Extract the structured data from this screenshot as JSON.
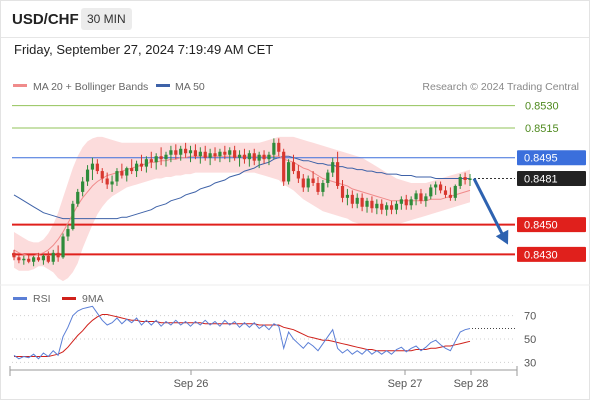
{
  "header": {
    "pair": "USD/CHF",
    "timeframe": "30 MIN",
    "datetime": "Friday, September 27, 2024 7:19:49 AM CET"
  },
  "colors": {
    "resistance": "#92c35a",
    "pivot": "#3b6fdc",
    "support": "#e0201c",
    "bullish": "#2e8b3a",
    "bearish": "#d8372f",
    "bollinger_fill": "#fcdcdc",
    "ma20": "#f08b8b",
    "ma50": "#3e62a8",
    "rsi": "#5b7fd6",
    "rsi_ma": "#d0211b",
    "arrow": "#2e62b0"
  },
  "chart_data": [
    {
      "type": "candlestick",
      "title": "USD/CHF",
      "legend": [
        {
          "name": "MA 20 + Bollinger Bands",
          "color": "#f08b8b"
        },
        {
          "name": "MA 50",
          "color": "#3e62a8"
        }
      ],
      "legend_position": "top-left",
      "credit": "Research © 2024 Trading Central",
      "x_ticks": [
        "Sep 26",
        "Sep 27",
        "Sep 28"
      ],
      "ylim": [
        0.8406,
        0.8554
      ],
      "levels": [
        {
          "label": "0.8530",
          "value": 0.853,
          "kind": "resistance"
        },
        {
          "label": "0.8515",
          "value": 0.8515,
          "kind": "resistance"
        },
        {
          "label": "0.8495",
          "value": 0.8495,
          "kind": "pivot"
        },
        {
          "label": "0.8481",
          "value": 0.8481,
          "kind": "current"
        },
        {
          "label": "0.8450",
          "value": 0.845,
          "kind": "support"
        },
        {
          "label": "0.8430",
          "value": 0.843,
          "kind": "support"
        }
      ],
      "candles": [
        [
          0.8431,
          0.8433,
          0.8426,
          0.8428
        ],
        [
          0.8428,
          0.843,
          0.8424,
          0.8426
        ],
        [
          0.8426,
          0.8429,
          0.8423,
          0.8427
        ],
        [
          0.8427,
          0.843,
          0.8424,
          0.8425
        ],
        [
          0.8425,
          0.8429,
          0.8422,
          0.8428
        ],
        [
          0.8428,
          0.8431,
          0.8425,
          0.8426
        ],
        [
          0.8426,
          0.843,
          0.8423,
          0.8429
        ],
        [
          0.8429,
          0.8432,
          0.8424,
          0.8425
        ],
        [
          0.8425,
          0.8433,
          0.8423,
          0.8431
        ],
        [
          0.8431,
          0.8436,
          0.8425,
          0.8428
        ],
        [
          0.8428,
          0.8444,
          0.8427,
          0.8442
        ],
        [
          0.8442,
          0.845,
          0.8439,
          0.8447
        ],
        [
          0.8447,
          0.8466,
          0.8446,
          0.8464
        ],
        [
          0.8464,
          0.8474,
          0.8462,
          0.8472
        ],
        [
          0.8472,
          0.8482,
          0.8469,
          0.8479
        ],
        [
          0.8479,
          0.849,
          0.8476,
          0.8487
        ],
        [
          0.8487,
          0.8495,
          0.848,
          0.8491
        ],
        [
          0.8491,
          0.8494,
          0.8484,
          0.8486
        ],
        [
          0.8486,
          0.8488,
          0.8478,
          0.8481
        ],
        [
          0.8481,
          0.8485,
          0.8474,
          0.8477
        ],
        [
          0.8477,
          0.8483,
          0.8472,
          0.8479
        ],
        [
          0.8479,
          0.8488,
          0.8476,
          0.8486
        ],
        [
          0.8486,
          0.8491,
          0.8481,
          0.8483
        ],
        [
          0.8483,
          0.8489,
          0.8479,
          0.8488
        ],
        [
          0.8488,
          0.8494,
          0.8484,
          0.8486
        ],
        [
          0.8486,
          0.8493,
          0.8482,
          0.8491
        ],
        [
          0.8491,
          0.8497,
          0.8486,
          0.8489
        ],
        [
          0.8489,
          0.8496,
          0.8485,
          0.8494
        ],
        [
          0.8494,
          0.8499,
          0.8488,
          0.8492
        ],
        [
          0.8492,
          0.8498,
          0.8487,
          0.8496
        ],
        [
          0.8496,
          0.8502,
          0.849,
          0.8494
        ],
        [
          0.8494,
          0.8499,
          0.8489,
          0.8497
        ],
        [
          0.8497,
          0.8503,
          0.8492,
          0.85
        ],
        [
          0.85,
          0.8504,
          0.8494,
          0.8497
        ],
        [
          0.8497,
          0.8503,
          0.8493,
          0.8501
        ],
        [
          0.8501,
          0.8505,
          0.8495,
          0.8498
        ],
        [
          0.8498,
          0.8503,
          0.8492,
          0.85
        ],
        [
          0.85,
          0.8504,
          0.8494,
          0.8496
        ],
        [
          0.8496,
          0.8502,
          0.8491,
          0.8499
        ],
        [
          0.8499,
          0.8503,
          0.8493,
          0.8495
        ],
        [
          0.8495,
          0.8501,
          0.849,
          0.8498
        ],
        [
          0.8498,
          0.8502,
          0.8493,
          0.8496
        ],
        [
          0.8496,
          0.8501,
          0.8492,
          0.8499
        ],
        [
          0.8499,
          0.8503,
          0.8494,
          0.8497
        ],
        [
          0.8497,
          0.8502,
          0.8492,
          0.85
        ],
        [
          0.85,
          0.8503,
          0.8493,
          0.8495
        ],
        [
          0.8495,
          0.85,
          0.8489,
          0.8497
        ],
        [
          0.8497,
          0.8501,
          0.8491,
          0.8494
        ],
        [
          0.8494,
          0.85,
          0.8489,
          0.8498
        ],
        [
          0.8498,
          0.8501,
          0.849,
          0.8493
        ],
        [
          0.8493,
          0.8499,
          0.8488,
          0.8497
        ],
        [
          0.8497,
          0.85,
          0.8491,
          0.8494
        ],
        [
          0.8494,
          0.8499,
          0.849,
          0.8497
        ],
        [
          0.8497,
          0.8508,
          0.8494,
          0.8505
        ],
        [
          0.8505,
          0.8508,
          0.8496,
          0.8499
        ],
        [
          0.8499,
          0.8501,
          0.8476,
          0.8479
        ],
        [
          0.8479,
          0.8494,
          0.8477,
          0.8492
        ],
        [
          0.8492,
          0.8497,
          0.8484,
          0.8486
        ],
        [
          0.8486,
          0.849,
          0.8478,
          0.8481
        ],
        [
          0.8481,
          0.8484,
          0.8472,
          0.8475
        ],
        [
          0.8475,
          0.8483,
          0.8472,
          0.8481
        ],
        [
          0.8481,
          0.8486,
          0.8476,
          0.8478
        ],
        [
          0.8478,
          0.8482,
          0.847,
          0.8472
        ],
        [
          0.8472,
          0.848,
          0.8469,
          0.8478
        ],
        [
          0.8478,
          0.8487,
          0.8475,
          0.8485
        ],
        [
          0.8485,
          0.8495,
          0.8482,
          0.8492
        ],
        [
          0.8492,
          0.8499,
          0.8474,
          0.8476
        ],
        [
          0.8476,
          0.848,
          0.8465,
          0.8468
        ],
        [
          0.8468,
          0.8474,
          0.8463,
          0.847
        ],
        [
          0.847,
          0.8473,
          0.8461,
          0.8464
        ],
        [
          0.8464,
          0.8471,
          0.8461,
          0.8468
        ],
        [
          0.8468,
          0.8471,
          0.8459,
          0.8462
        ],
        [
          0.8462,
          0.8468,
          0.8458,
          0.8466
        ],
        [
          0.8466,
          0.8469,
          0.8458,
          0.8461
        ],
        [
          0.8461,
          0.8467,
          0.8457,
          0.8464
        ],
        [
          0.8464,
          0.8467,
          0.8457,
          0.846
        ],
        [
          0.846,
          0.8465,
          0.8456,
          0.8463
        ],
        [
          0.8463,
          0.8466,
          0.8457,
          0.846
        ],
        [
          0.846,
          0.8466,
          0.8457,
          0.8464
        ],
        [
          0.8464,
          0.8469,
          0.846,
          0.8467
        ],
        [
          0.8467,
          0.847,
          0.846,
          0.8463
        ],
        [
          0.8463,
          0.8469,
          0.846,
          0.8467
        ],
        [
          0.8467,
          0.8473,
          0.8463,
          0.8471
        ],
        [
          0.8471,
          0.8474,
          0.8464,
          0.8466
        ],
        [
          0.8466,
          0.8471,
          0.8462,
          0.8469
        ],
        [
          0.8469,
          0.8477,
          0.8467,
          0.8475
        ],
        [
          0.8475,
          0.8479,
          0.847,
          0.8477
        ],
        [
          0.8477,
          0.8479,
          0.8471,
          0.8473
        ],
        [
          0.8473,
          0.8476,
          0.8468,
          0.847
        ],
        [
          0.847,
          0.8475,
          0.8466,
          0.8468
        ],
        [
          0.8468,
          0.8477,
          0.8466,
          0.8476
        ],
        [
          0.8476,
          0.8484,
          0.8474,
          0.8482
        ],
        [
          0.8482,
          0.8485,
          0.8477,
          0.848
        ],
        [
          0.848,
          0.8484,
          0.8476,
          0.8481
        ]
      ],
      "ma20": [
        0.8433,
        0.8431,
        0.843,
        0.8429,
        0.8429,
        0.843,
        0.8431,
        0.8433,
        0.8436,
        0.844,
        0.8445,
        0.8451,
        0.8457,
        0.8463,
        0.8468,
        0.8472,
        0.8476,
        0.8479,
        0.8481,
        0.8483,
        0.8484,
        0.8485,
        0.8486,
        0.8487,
        0.8488,
        0.8489,
        0.849,
        0.8491,
        0.8492,
        0.8492,
        0.8493,
        0.8493,
        0.8494,
        0.8494,
        0.8495,
        0.8495,
        0.8496,
        0.8496,
        0.8496,
        0.8496,
        0.8496,
        0.8496,
        0.8496,
        0.8496,
        0.8496,
        0.8496,
        0.8496,
        0.8496,
        0.8496,
        0.8496,
        0.8496,
        0.8496,
        0.8496,
        0.8496,
        0.8496,
        0.8494,
        0.8493,
        0.8492,
        0.849,
        0.8488,
        0.8487,
        0.8485,
        0.8483,
        0.8481,
        0.848,
        0.8479,
        0.8478,
        0.8477,
        0.8476,
        0.8474,
        0.8473,
        0.8472,
        0.8471,
        0.847,
        0.8469,
        0.8468,
        0.8467,
        0.8466,
        0.8466,
        0.8466,
        0.8466,
        0.8466,
        0.8466,
        0.8466,
        0.8466,
        0.8467,
        0.8467,
        0.8467,
        0.8468,
        0.8469,
        0.847,
        0.8471,
        0.8472,
        0.8473
      ],
      "bb_upper": [
        0.8445,
        0.8443,
        0.8441,
        0.8439,
        0.8438,
        0.8438,
        0.844,
        0.8444,
        0.845,
        0.8458,
        0.8468,
        0.8478,
        0.8488,
        0.8496,
        0.8502,
        0.8506,
        0.8508,
        0.8509,
        0.8509,
        0.8508,
        0.8507,
        0.8506,
        0.8505,
        0.8505,
        0.8505,
        0.8505,
        0.8505,
        0.8505,
        0.8505,
        0.8505,
        0.8505,
        0.8505,
        0.8505,
        0.8505,
        0.8505,
        0.8505,
        0.8505,
        0.8505,
        0.8505,
        0.8505,
        0.8505,
        0.8505,
        0.8505,
        0.8505,
        0.8505,
        0.8505,
        0.8505,
        0.8505,
        0.8505,
        0.8505,
        0.8505,
        0.8506,
        0.8507,
        0.8508,
        0.8509,
        0.8509,
        0.8509,
        0.8509,
        0.8508,
        0.8507,
        0.8506,
        0.8505,
        0.8504,
        0.8503,
        0.8502,
        0.8501,
        0.85,
        0.8499,
        0.8498,
        0.8497,
        0.8496,
        0.8495,
        0.8493,
        0.8491,
        0.8489,
        0.8487,
        0.8485,
        0.8483,
        0.8481,
        0.848,
        0.8479,
        0.8478,
        0.8478,
        0.8478,
        0.8478,
        0.8479,
        0.848,
        0.8481,
        0.8482,
        0.8483,
        0.8484,
        0.8485,
        0.8486,
        0.8487
      ],
      "bb_lower": [
        0.8421,
        0.8419,
        0.8419,
        0.8419,
        0.842,
        0.8422,
        0.8422,
        0.842,
        0.8418,
        0.8414,
        0.8412,
        0.8414,
        0.8418,
        0.8424,
        0.8434,
        0.8442,
        0.845,
        0.8457,
        0.8462,
        0.8466,
        0.8469,
        0.8471,
        0.8473,
        0.8475,
        0.8476,
        0.8477,
        0.8478,
        0.8479,
        0.848,
        0.8481,
        0.8481,
        0.8482,
        0.8482,
        0.8483,
        0.8483,
        0.8484,
        0.8484,
        0.8485,
        0.8485,
        0.8485,
        0.8485,
        0.8485,
        0.8485,
        0.8485,
        0.8485,
        0.8485,
        0.8485,
        0.8485,
        0.8485,
        0.8485,
        0.8484,
        0.8483,
        0.8482,
        0.8481,
        0.848,
        0.8477,
        0.8475,
        0.8473,
        0.847,
        0.8467,
        0.8465,
        0.8463,
        0.8461,
        0.8459,
        0.8458,
        0.8457,
        0.8456,
        0.8455,
        0.8454,
        0.8452,
        0.8451,
        0.845,
        0.845,
        0.845,
        0.845,
        0.845,
        0.845,
        0.845,
        0.845,
        0.8451,
        0.8452,
        0.8453,
        0.8454,
        0.8455,
        0.8456,
        0.8457,
        0.8458,
        0.8459,
        0.846,
        0.8461,
        0.8462,
        0.8463,
        0.8464,
        0.8465
      ],
      "ma50": [
        0.847,
        0.8468,
        0.8466,
        0.8464,
        0.8462,
        0.846,
        0.8458,
        0.8457,
        0.8456,
        0.8455,
        0.8454,
        0.8454,
        0.8454,
        0.8454,
        0.8454,
        0.8454,
        0.8454,
        0.8454,
        0.8454,
        0.8454,
        0.8454,
        0.8454,
        0.8455,
        0.8455,
        0.8456,
        0.8457,
        0.8458,
        0.8459,
        0.846,
        0.8462,
        0.8463,
        0.8464,
        0.8466,
        0.8467,
        0.8468,
        0.847,
        0.8471,
        0.8472,
        0.8474,
        0.8475,
        0.8476,
        0.8478,
        0.8479,
        0.848,
        0.8482,
        0.8483,
        0.8484,
        0.8486,
        0.8487,
        0.8488,
        0.849,
        0.8491,
        0.8492,
        0.8494,
        0.8495,
        0.8496,
        0.8496,
        0.8495,
        0.8494,
        0.8493,
        0.8493,
        0.8492,
        0.8491,
        0.8491,
        0.849,
        0.849,
        0.8489,
        0.8489,
        0.8488,
        0.8488,
        0.8487,
        0.8487,
        0.8486,
        0.8486,
        0.8485,
        0.8485,
        0.8484,
        0.8484,
        0.8484,
        0.8483,
        0.8483,
        0.8483,
        0.8482,
        0.8482,
        0.8482,
        0.8482,
        0.8481,
        0.8481,
        0.8481,
        0.8481,
        0.8481,
        0.8481,
        0.8481,
        0.8481
      ],
      "forecast_arrow": {
        "from": 0.8481,
        "to": 0.845
      }
    },
    {
      "type": "line",
      "legend": [
        {
          "name": "RSI",
          "color": "#5b7fd6"
        },
        {
          "name": "9MA",
          "color": "#d0211b"
        }
      ],
      "y_ticks": [
        70,
        50,
        30
      ],
      "ylim": [
        20,
        80
      ],
      "rsi": [
        36,
        33,
        35,
        34,
        37,
        33,
        38,
        35,
        40,
        36,
        52,
        60,
        70,
        74,
        76,
        77,
        78,
        72,
        66,
        62,
        64,
        68,
        63,
        67,
        64,
        68,
        62,
        66,
        62,
        66,
        61,
        65,
        62,
        66,
        62,
        65,
        61,
        65,
        62,
        66,
        62,
        65,
        61,
        66,
        62,
        65,
        60,
        64,
        60,
        64,
        59,
        62,
        58,
        63,
        61,
        42,
        56,
        50,
        46,
        42,
        47,
        44,
        40,
        46,
        52,
        58,
        42,
        38,
        41,
        37,
        40,
        37,
        41,
        37,
        40,
        37,
        40,
        37,
        41,
        43,
        39,
        42,
        44,
        40,
        43,
        47,
        49,
        45,
        42,
        40,
        48,
        56,
        58,
        59
      ],
      "rsi_ma": [
        35,
        35,
        35,
        35,
        35,
        35,
        35,
        35,
        36,
        37,
        39,
        43,
        48,
        53,
        57,
        62,
        66,
        69,
        71,
        71,
        70,
        69,
        68,
        67,
        66,
        66,
        65,
        65,
        65,
        65,
        64,
        64,
        64,
        64,
        64,
        64,
        64,
        64,
        64,
        63,
        63,
        63,
        63,
        63,
        63,
        63,
        63,
        63,
        63,
        63,
        62,
        62,
        62,
        62,
        62,
        60,
        59,
        58,
        56,
        54,
        52,
        51,
        50,
        49,
        49,
        48,
        47,
        46,
        45,
        44,
        43,
        42,
        41,
        41,
        40,
        40,
        40,
        40,
        40,
        40,
        40,
        40,
        41,
        41,
        41,
        42,
        42,
        43,
        44,
        44,
        45,
        46,
        47,
        48
      ]
    }
  ]
}
